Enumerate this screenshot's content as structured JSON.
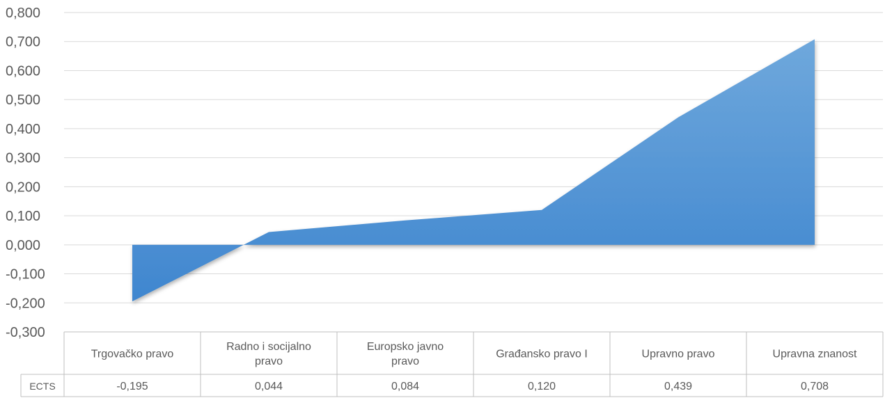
{
  "chart_data": {
    "type": "area",
    "categories": [
      "Trgovačko pravo",
      "Radno i socijalno pravo",
      "Europsko javno pravo",
      "Građansko pravo I",
      "Upravno pravo",
      "Upravna znanost"
    ],
    "category_lines": [
      [
        "Trgovačko pravo"
      ],
      [
        "Radno i socijalno",
        "pravo"
      ],
      [
        "Europsko javno",
        "pravo"
      ],
      [
        "Građansko pravo I"
      ],
      [
        "Upravno pravo"
      ],
      [
        "Upravna znanost"
      ]
    ],
    "series": [
      {
        "name": "ECTS",
        "values": [
          -0.195,
          0.044,
          0.084,
          0.12,
          0.439,
          0.708
        ],
        "value_labels": [
          "-0,195",
          "0,044",
          "0,084",
          "0,120",
          "0,439",
          "0,708"
        ]
      }
    ],
    "ytick_labels": [
      "0,800",
      "0,700",
      "0,600",
      "0,500",
      "0,400",
      "0,300",
      "0,200",
      "0,100",
      "0,000",
      "-0,100",
      "-0,200",
      "-0,300"
    ],
    "ylim": [
      -0.3,
      0.8
    ],
    "grid": true,
    "data_table": true,
    "colors": {
      "area_top": "#6fa8dc",
      "area_bottom": "#3f86cf",
      "grid": "#d9d9d9",
      "table_border": "#bfbfbf",
      "text": "#595959"
    }
  }
}
